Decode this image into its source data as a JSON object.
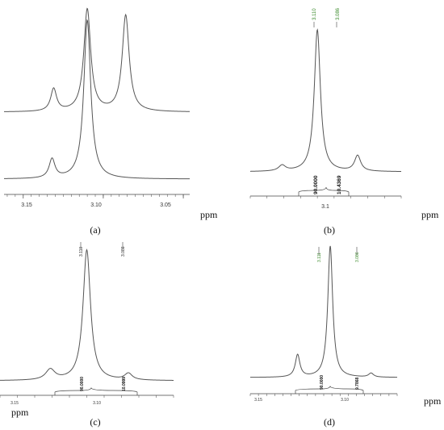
{
  "colors": {
    "trace": "#555555",
    "axis": "#444444",
    "peak_label_a": "#3a8a2a",
    "peak_label_b": "#222222"
  },
  "chart_data": [
    {
      "type": "line",
      "panel": "a",
      "caption": "(a)",
      "xlabel": "ppm",
      "x_reversed": true,
      "xlim": [
        3.162,
        3.046
      ],
      "xticks": [
        "3.15",
        "3.10",
        "3.05"
      ],
      "series": [
        {
          "peaks": [
            {
              "x": 3.131,
              "height": 0.22,
              "width": 0.0022
            },
            {
              "x": 3.11,
              "height": 1.0,
              "width": 0.0026
            },
            {
              "x": 3.086,
              "height": 0.94,
              "width": 0.0026
            }
          ],
          "baseline": 0.02
        },
        {
          "peaks": [
            {
              "x": 3.132,
              "height": 0.12,
              "width": 0.0022
            },
            {
              "x": 3.11,
              "height": 1.0,
              "width": 0.0026
            }
          ],
          "baseline": 0.02
        }
      ]
    },
    {
      "type": "line",
      "panel": "b",
      "caption": "(b)",
      "xlabel": "ppm",
      "x_reversed": true,
      "xlim": [
        3.15,
        3.06
      ],
      "xticks": [
        "3.1"
      ],
      "peak_labels": [
        "3.110",
        "3.086"
      ],
      "integrals": [
        "90.0000",
        "10.4369"
      ],
      "peaks": [
        {
          "x": 3.131,
          "height": 0.04,
          "width": 0.0025
        },
        {
          "x": 3.11,
          "height": 1.0,
          "width": 0.0022
        },
        {
          "x": 3.086,
          "height": 0.11,
          "width": 0.0022
        }
      ]
    },
    {
      "type": "line",
      "panel": "c",
      "caption": "(c)",
      "xlabel": "ppm",
      "x_reversed": true,
      "xlim": [
        3.16,
        3.06
      ],
      "xticks": [
        "3.15",
        "3.10"
      ],
      "peak_labels": [
        "3.110",
        "3.086"
      ],
      "integrals": [
        "90.0000",
        "10.0999"
      ],
      "peaks": [
        {
          "x": 3.131,
          "height": 0.08,
          "width": 0.0032
        },
        {
          "x": 3.11,
          "height": 1.0,
          "width": 0.0026
        },
        {
          "x": 3.086,
          "height": 0.05,
          "width": 0.0026
        }
      ]
    },
    {
      "type": "line",
      "panel": "d",
      "caption": "(d)",
      "xlabel": "ppm",
      "x_reversed": true,
      "xlim": [
        3.16,
        3.07
      ],
      "xticks": [
        "3.15",
        "3.10"
      ],
      "peak_labels": [
        "3.111",
        "3.086"
      ],
      "integrals": [
        "90.0000",
        "9.7868"
      ],
      "peaks": [
        {
          "x": 3.131,
          "height": 0.17,
          "width": 0.0017
        },
        {
          "x": 3.111,
          "height": 1.0,
          "width": 0.0018
        },
        {
          "x": 3.086,
          "height": 0.03,
          "width": 0.0018
        }
      ]
    }
  ]
}
